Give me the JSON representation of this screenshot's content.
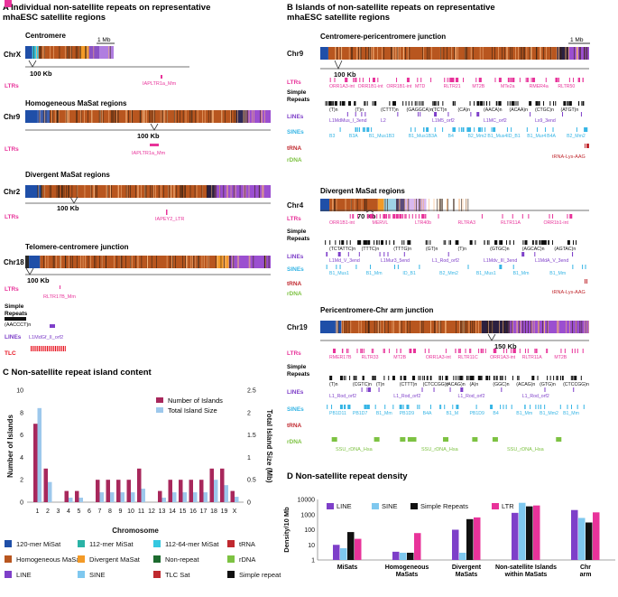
{
  "colors": {
    "mi120": "#1f4fa8",
    "mi112": "#2ab3a6",
    "mi11264": "#35c8e0",
    "trna": "#c0292f",
    "homog": "#b8561f",
    "diverg": "#f39a27",
    "nonrep": "#1d6b2f",
    "rdna": "#7dc242",
    "line": "#7e3fc9",
    "sine": "#7fc8ef",
    "tlc": "#e8121f",
    "simple": "#111111",
    "ltr": "#e8339a",
    "barIslands": "#a8285c",
    "barSize": "#9dc8ec"
  },
  "panelA": {
    "title_l1": "A Individual non-satellite repeats on representative",
    "title_l2": "mhaESC satellite regions",
    "sections": [
      {
        "heading": "Centromere",
        "chr": "ChrX",
        "scale": "1 Mb",
        "zoom": "100 Kb",
        "tracks": [
          {
            "label": "LTRs",
            "names": [
              "IAPLTR1a_Mm"
            ]
          }
        ]
      },
      {
        "heading": "Homogeneous MaSat regions",
        "chr": "Chr9",
        "zoom": "100 Kb",
        "tracks": [
          {
            "label": "LTRs",
            "names": [
              "IAPLTR1a_Mm"
            ]
          }
        ]
      },
      {
        "heading": "Divergent MaSat regions",
        "chr": "Chr2",
        "zoom": "100 Kb",
        "tracks": [
          {
            "label": "LTRs",
            "names": [
              "IAPEY2_LTR"
            ]
          }
        ]
      },
      {
        "heading": "Telomere-centromere junction",
        "chr": "Chr18",
        "zoom": "100 Kb",
        "tracks": [
          {
            "label": "LTRs",
            "names": [
              "RLTR17B_Mm"
            ]
          },
          {
            "label": "Simple Repeats",
            "names": [
              "(AACCCT)n"
            ]
          },
          {
            "label": "LINEs",
            "names": [
              "L1MdGf_II_orf2"
            ]
          },
          {
            "label": "TLC",
            "names": []
          }
        ]
      }
    ]
  },
  "panelB": {
    "title_l1": "B Islands of non-satellite repeats on representative",
    "title_l2": "mhaESC satellite regions",
    "sections": [
      {
        "heading": "Centromere-pericentromere junction",
        "chr": "Chr9",
        "scale": "1 Mb",
        "zoom": "100 Kb",
        "tracks": [
          {
            "label": "LTRs",
            "names": [
              "ORR1A3-int",
              "ORR1B1-int",
              "ORR1B1-int",
              "MTD",
              "RLTR21",
              "MT2B",
              "MTe2a",
              "RMER4a",
              "RLTR50"
            ]
          },
          {
            "label": "Simple Repeats",
            "names": [
              "(T)n",
              "(T)n",
              "(CTTT)n",
              "(GAGGCA)n",
              "(TCT)n",
              "(CA)n",
              "(AACA)n",
              "(ACAA)n",
              "(CTGC)n",
              "(ATGT)n"
            ]
          },
          {
            "label": "LINEs",
            "names": [
              "L1MdMus_I_3end",
              "L2",
              "L1M5_orf2",
              "L1MC_orf2",
              "Lx9_3end"
            ]
          },
          {
            "label": "SINEs",
            "names": [
              "B3",
              "B3A",
              "B1_Mus1",
              "B3",
              "B1_Mus1",
              "B3A",
              "B4",
              "B2_Mm2",
              "B1_Mus4",
              "ID_B1",
              "B1_Mur4",
              "B4A",
              "B2_Mm2"
            ]
          },
          {
            "label": "tRNA",
            "names": [
              "tRNA-Lys-AAG"
            ]
          },
          {
            "label": "rDNA",
            "names": []
          }
        ]
      },
      {
        "heading": "Divergent MaSat regions",
        "chr": "Chr4",
        "zoom": "70 Kb",
        "tracks": [
          {
            "label": "LTRs",
            "names": [
              "ORR1B1-int",
              "MERVL",
              "LTR40b",
              "RLTRA3",
              "RLTR11A",
              "ORR1b1-int"
            ]
          },
          {
            "label": "Simple Repeats",
            "names": [
              "(TCTATTC)n",
              "(TTTC)n",
              "(TTTG)n",
              "(GT)n",
              "(T)n",
              "(GTGC)n",
              "(AGCAC)n",
              "(AGTAC)n"
            ]
          },
          {
            "label": "LINEs",
            "names": [
              "L1Md_V_3end",
              "L1Mur3_5end",
              "L1_Rod_orf2",
              "L1Mdv_III_3end",
              "L1MdA_V_3end"
            ]
          },
          {
            "label": "SINEs",
            "names": [
              "B1_Mus1",
              "B1_Mm",
              "ID_B1",
              "B2_Mm2",
              "B1_Mus1",
              "B1_Mm",
              "B1_Mm"
            ]
          },
          {
            "label": "tRNA",
            "names": [
              "tRNA-Lys-AAG"
            ]
          },
          {
            "label": "rDNA",
            "names": []
          }
        ]
      },
      {
        "heading": "Pericentromere-Chr arm junction",
        "chr": "Chr19",
        "zoom": "150 Kb",
        "tracks": [
          {
            "label": "LTRs",
            "names": [
              "RMER17B",
              "RLTR33",
              "MT2B",
              "ORR1A3-int",
              "RLTR11C",
              "ORR1A3-int",
              "RLTR11A",
              "MT2B"
            ]
          },
          {
            "label": "Simple Repeats",
            "names": [
              "(T)n",
              "(CGTC)n",
              "(T)n",
              "(CTTT)n",
              "(CTCCGG)n",
              "(ACAG)n",
              "(A)n",
              "(GGC)n",
              "(ACAG)n",
              "(GTG)n",
              "(CTCCGG)n"
            ]
          },
          {
            "label": "LINEs",
            "names": [
              "L1_Rod_orf2",
              "L1_Rod_orf2",
              "L1_Rod_orf2",
              "L1_Rod_orf2"
            ]
          },
          {
            "label": "SINEs",
            "names": [
              "PB1D11",
              "PB1D7",
              "B1_Mm",
              "PB1D9",
              "B4A",
              "B1_M",
              "PB1D9",
              "B4",
              "B1_Mm",
              "B1_Mm2",
              "B1_Mm"
            ]
          },
          {
            "label": "tRNA",
            "names": []
          },
          {
            "label": "rDNA",
            "names": [
              "SSU_rDNA_Hsa",
              "SSU_rDNA_Hsa",
              "SSU_rDNA_Hsa"
            ]
          }
        ]
      }
    ]
  },
  "panelC": {
    "title": "C Non-satellite repeat island content",
    "legend": {
      "islands": "Number of Islands",
      "size": "Total Island Size"
    },
    "chart_data": {
      "type": "bar",
      "xlabel": "Chromosome",
      "ylabel": "Number of Islands",
      "y2label": "Total Island Size (Mb)",
      "ylim": [
        0,
        10
      ],
      "y2lim": [
        0,
        2.5
      ],
      "yticks": [
        0,
        2,
        4,
        6,
        8,
        10
      ],
      "y2ticks": [
        "0",
        "0.5",
        "1",
        "1.5",
        "2",
        "2.5"
      ],
      "categories": [
        "1",
        "2",
        "3",
        "4",
        "5",
        "6",
        "7",
        "8",
        "9",
        "10",
        "11",
        "12",
        "13",
        "14",
        "15",
        "16",
        "17",
        "18",
        "19",
        "X"
      ],
      "series": [
        {
          "name": "Number of Islands",
          "axis": "left",
          "values": [
            7,
            3,
            0,
            1,
            1,
            0,
            2,
            2,
            2,
            2,
            3,
            0,
            1,
            2,
            2,
            2,
            2,
            3,
            3,
            1
          ]
        },
        {
          "name": "Total Island Size",
          "axis": "right",
          "values": [
            2.1,
            0.45,
            0,
            0.1,
            0.1,
            0,
            0.22,
            0.22,
            0.22,
            0.22,
            0.3,
            0,
            0.1,
            0.22,
            0.22,
            0.22,
            0.22,
            0.5,
            0.38,
            0.12
          ]
        }
      ]
    }
  },
  "legendMain": {
    "items": [
      {
        "label": "120-mer MiSat",
        "color": "mi120"
      },
      {
        "label": "112-mer MiSat",
        "color": "mi112"
      },
      {
        "label": "112-64-mer MiSat",
        "color": "mi11264"
      },
      {
        "label": "tRNA",
        "color": "trna"
      },
      {
        "label": "Homogeneous MaSat",
        "color": "homog"
      },
      {
        "label": "Divergent MaSat",
        "color": "diverg"
      },
      {
        "label": "Non-repeat",
        "color": "nonrep"
      },
      {
        "label": "rDNA",
        "color": "rdna"
      },
      {
        "label": "LINE",
        "color": "line"
      },
      {
        "label": "SINE",
        "color": "sine"
      },
      {
        "label": "TLC Sat",
        "color": "trna"
      },
      {
        "label": "Simple repeat",
        "color": "simple"
      },
      {
        "label": "LTR",
        "color": "ltr"
      }
    ]
  },
  "panelD": {
    "title": "D Non-satellite repeat density",
    "legend": [
      "LINE",
      "SINE",
      "Simple Repeats",
      "LTR"
    ],
    "chart_data": {
      "type": "bar",
      "scale": "log",
      "ylabel": "Density/10 Mb",
      "ylim": [
        1,
        10000
      ],
      "yticks": [
        "1",
        "10",
        "100",
        "1000",
        "10000"
      ],
      "categories": [
        "MiSats",
        "Homogeneous MaSats",
        "Divergent MaSats",
        "Non-satellite Islands within MaSats",
        "Chr arm"
      ],
      "series": [
        {
          "name": "LINE",
          "color": "line",
          "values": [
            10,
            3.5,
            100,
            1300,
            2000
          ]
        },
        {
          "name": "SINE",
          "color": "sine",
          "values": [
            6,
            3,
            3,
            6000,
            600
          ]
        },
        {
          "name": "Simple Repeats",
          "color": "simple",
          "values": [
            70,
            3,
            500,
            3500,
            300
          ]
        },
        {
          "name": "LTR",
          "color": "ltr",
          "values": [
            25,
            60,
            650,
            4000,
            1400
          ]
        }
      ]
    }
  }
}
